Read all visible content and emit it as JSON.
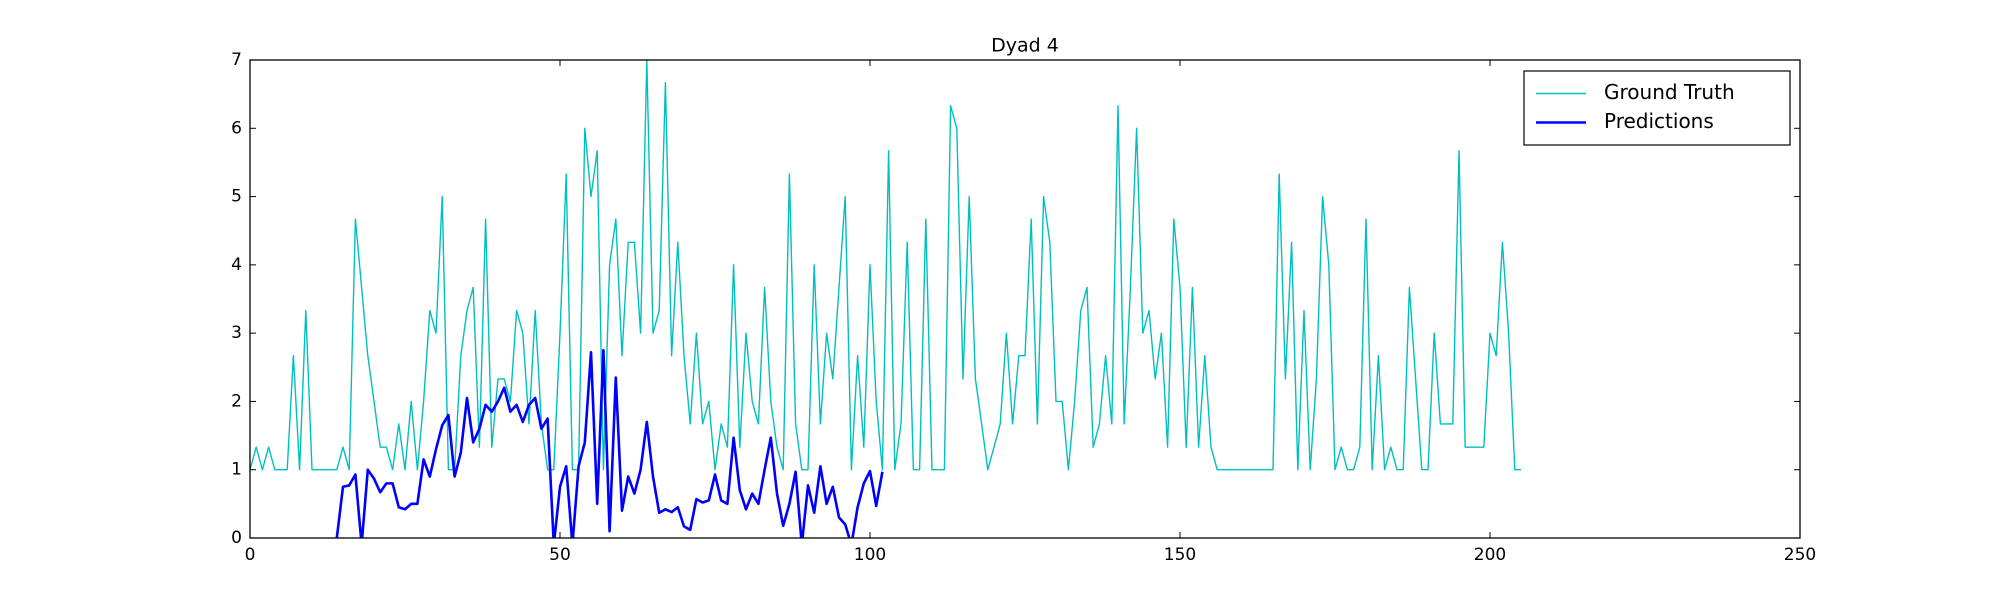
{
  "chart_data": {
    "type": "line",
    "title": "Dyad 4",
    "xlim": [
      0,
      250
    ],
    "xticks": [
      0,
      50,
      100,
      150,
      200,
      250
    ],
    "ylim": [
      0,
      7
    ],
    "yticks": [
      0,
      1,
      2,
      3,
      4,
      5,
      6,
      7
    ],
    "legend": "upper right",
    "series": [
      {
        "name": "Ground Truth",
        "color": "#00bfbf",
        "width": 1.4,
        "x": [
          0,
          1,
          2,
          3,
          4,
          5,
          6,
          7,
          8,
          9,
          10,
          11,
          12,
          13,
          14,
          15,
          16,
          17,
          18,
          19,
          20,
          21,
          22,
          23,
          24,
          25,
          26,
          27,
          28,
          29,
          30,
          31,
          32,
          33,
          34,
          35,
          36,
          37,
          38,
          39,
          40,
          41,
          42,
          43,
          44,
          45,
          46,
          47,
          48,
          49,
          50,
          51,
          52,
          53,
          54,
          55,
          56,
          57,
          58,
          59,
          60,
          61,
          62,
          63,
          64,
          65,
          66,
          67,
          68,
          69,
          70,
          71,
          72,
          73,
          74,
          75,
          76,
          77,
          78,
          79,
          80,
          81,
          82,
          83,
          84,
          85,
          86,
          87,
          88,
          89,
          90,
          91,
          92,
          93,
          94,
          95,
          96,
          97,
          98,
          99,
          100,
          101,
          102,
          103,
          104,
          105,
          106,
          107,
          108,
          109,
          110,
          111,
          112,
          113,
          114,
          115,
          116,
          117,
          118,
          119,
          120,
          121,
          122,
          123,
          124,
          125,
          126,
          127,
          128,
          129,
          130,
          131,
          132,
          133,
          134,
          135,
          136,
          137,
          138,
          139,
          140,
          141,
          142,
          143,
          144,
          145,
          146,
          147,
          148,
          149,
          150,
          151,
          152,
          153,
          154,
          155,
          156,
          157,
          158,
          159,
          160,
          161,
          162,
          163,
          164,
          165,
          166,
          167,
          168,
          169,
          170,
          171,
          172,
          173,
          174,
          175,
          176,
          177,
          178,
          179,
          180,
          181,
          182,
          183,
          184,
          185,
          186,
          187,
          188,
          189,
          190,
          191,
          192,
          193,
          194,
          195,
          196,
          197,
          198,
          199,
          200,
          201,
          202,
          203,
          204,
          205
        ],
        "values": [
          1,
          1.33,
          1,
          1.33,
          1,
          1,
          1,
          2.67,
          1,
          3.33,
          1,
          1,
          1,
          1,
          1,
          1.33,
          1,
          4.67,
          3.67,
          2.67,
          2,
          1.33,
          1.33,
          1,
          1.67,
          1,
          2,
          1,
          2,
          3.33,
          3,
          5,
          1,
          1,
          2.67,
          3.33,
          3.67,
          1.33,
          4.67,
          1.33,
          2.33,
          2.33,
          2,
          3.33,
          3,
          1.67,
          3.33,
          1.67,
          1,
          1,
          3,
          5.33,
          1,
          1,
          6,
          5,
          5.67,
          1,
          4,
          4.67,
          2.67,
          4.33,
          4.33,
          3,
          7,
          3,
          3.33,
          6.67,
          2.67,
          4.33,
          2.67,
          1.67,
          3,
          1.67,
          2,
          1,
          1.67,
          1.33,
          4,
          1.33,
          3,
          2,
          1.67,
          3.67,
          2,
          1.33,
          1,
          5.33,
          1.67,
          1,
          1,
          4,
          1.67,
          3,
          2.33,
          3.67,
          5,
          1,
          2.67,
          1.33,
          4,
          2,
          1,
          5.67,
          1,
          1.67,
          4.33,
          1,
          1,
          4.67,
          1,
          1,
          1,
          6.33,
          6,
          2.33,
          5,
          2.33,
          1.67,
          1,
          1.33,
          1.67,
          3,
          1.67,
          2.67,
          2.67,
          4.67,
          1.67,
          5,
          4.33,
          2,
          2,
          1,
          2,
          3.33,
          3.67,
          1.33,
          1.67,
          2.67,
          1.67,
          6.33,
          1.67,
          3.67,
          6,
          3,
          3.33,
          2.33,
          3,
          1.33,
          4.67,
          3.67,
          1.33,
          3.67,
          1.33,
          2.67,
          1.33,
          1,
          1,
          1,
          1,
          1,
          1,
          1,
          1,
          1,
          1,
          5.33,
          2.33,
          4.33,
          1,
          3.33,
          1,
          2.33,
          5,
          4,
          1,
          1.33,
          1,
          1,
          1.33,
          4.67,
          1,
          2.67,
          1,
          1.33,
          1,
          1,
          3.67,
          2.33,
          1,
          1,
          3,
          1.67,
          1.67,
          1.67,
          5.67,
          1.33,
          1.33,
          1.33,
          1.33,
          3,
          2.67,
          4.33,
          3,
          1,
          1
        ]
      },
      {
        "name": "Predictions",
        "color": "#0000ff",
        "width": 2.6,
        "x": [
          14,
          15,
          16,
          17,
          18,
          19,
          20,
          21,
          22,
          23,
          24,
          25,
          26,
          27,
          28,
          29,
          30,
          31,
          32,
          33,
          34,
          35,
          36,
          37,
          38,
          39,
          40,
          41,
          42,
          43,
          44,
          45,
          46,
          47,
          48,
          49,
          50,
          51,
          52,
          53,
          54,
          55,
          56,
          57,
          58,
          59,
          60,
          61,
          62,
          63,
          64,
          65,
          66,
          67,
          68,
          69,
          70,
          71,
          72,
          73,
          74,
          75,
          76,
          77,
          78,
          79,
          80,
          81,
          82,
          83,
          84,
          85,
          86,
          87,
          88,
          89,
          90,
          91,
          92,
          93,
          94,
          95,
          96,
          97,
          98,
          99,
          100,
          101,
          102
        ],
        "values": [
          0,
          0.75,
          0.77,
          0.93,
          -0.1,
          1,
          0.87,
          0.67,
          0.8,
          0.8,
          0.45,
          0.42,
          0.5,
          0.5,
          1.15,
          0.9,
          1.3,
          1.65,
          1.8,
          0.9,
          1.25,
          2.05,
          1.4,
          1.6,
          1.95,
          1.85,
          2,
          2.2,
          1.85,
          1.95,
          1.7,
          1.95,
          2.05,
          1.6,
          1.75,
          -0.1,
          0.75,
          1.05,
          -0.1,
          1.05,
          1.4,
          2.72,
          0.5,
          2.75,
          0.1,
          2.35,
          0.4,
          0.9,
          0.65,
          1,
          1.7,
          0.9,
          0.37,
          0.42,
          0.38,
          0.45,
          0.17,
          0.12,
          0.57,
          0.52,
          0.55,
          0.93,
          0.55,
          0.5,
          1.47,
          0.7,
          0.42,
          0.65,
          0.5,
          1,
          1.47,
          0.65,
          0.18,
          0.5,
          0.97,
          -0.1,
          0.77,
          0.37,
          1.05,
          0.5,
          0.75,
          0.3,
          0.2,
          -0.1,
          0.45,
          0.8,
          0.98,
          0.47,
          0.97
        ]
      }
    ]
  }
}
